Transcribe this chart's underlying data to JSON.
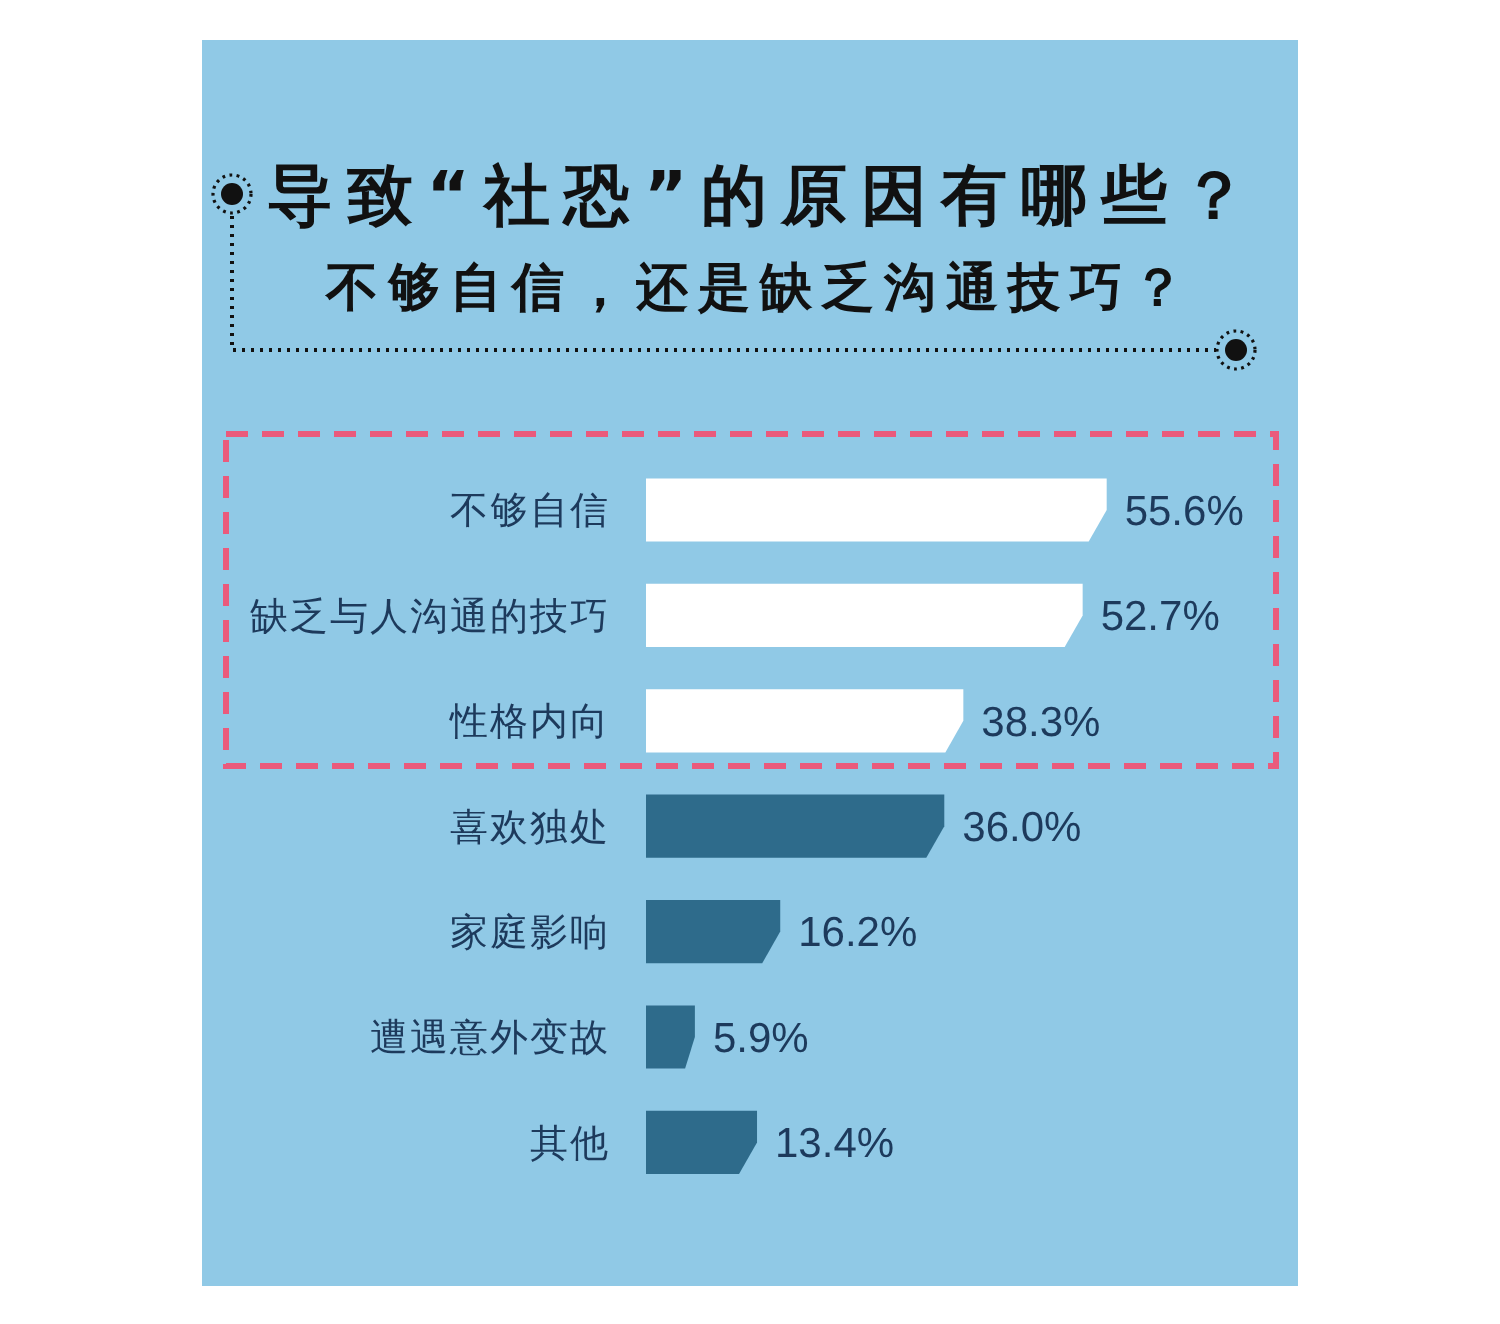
{
  "chart_data": {
    "type": "bar",
    "orientation": "horizontal",
    "title": "导致“社恐”的原因有哪些？",
    "subtitle": "不够自信，还是缺乏沟通技巧？",
    "categories": [
      "不够自信",
      "缺乏与人沟通的技巧",
      "性格内向",
      "喜欢独处",
      "家庭影响",
      "遭遇意外变故",
      "其他"
    ],
    "values": [
      55.6,
      52.7,
      38.3,
      36.0,
      16.2,
      5.9,
      13.4
    ],
    "colors": [
      "#ffffff",
      "#ffffff",
      "#ffffff",
      "#2e6b8b",
      "#2e6b8b",
      "#2e6b8b",
      "#2e6b8b"
    ],
    "value_labels": [
      "55.6%",
      "52.7%",
      "38.3%",
      "36.0%",
      "16.2%",
      "5.9%",
      "13.4%"
    ],
    "xlim": [
      0,
      56
    ],
    "tick_labels": "y"
  }
}
